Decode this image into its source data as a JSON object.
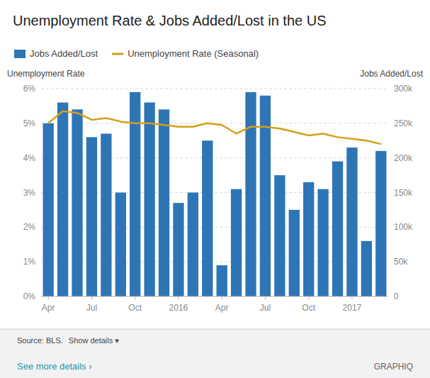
{
  "chart_data": {
    "type": "bar",
    "title": "Unemployment Rate & Jobs Added/Lost in the US",
    "y_label": "Unemployment Rate",
    "y2_label": "Jobs Added/Lost",
    "categories": [
      "Apr",
      null,
      null,
      "Jul",
      null,
      null,
      "Oct",
      null,
      null,
      "2016",
      null,
      null,
      "Apr",
      null,
      null,
      "Jul",
      null,
      null,
      "Oct",
      null,
      null,
      "2017",
      null,
      null
    ],
    "series": [
      {
        "name": "Jobs Added/Lost",
        "type": "bar",
        "axis": "y2",
        "color": "#2e75b6",
        "values": [
          250000,
          280000,
          270000,
          230000,
          235000,
          150000,
          295000,
          280000,
          270000,
          135000,
          150000,
          225000,
          45000,
          155000,
          295000,
          290000,
          175000,
          125000,
          165000,
          155000,
          195000,
          215000,
          80000,
          210000
        ]
      },
      {
        "name": "Unemployment Rate (Seasonal)",
        "type": "line",
        "color": "#d4a017",
        "values": [
          5.0,
          5.35,
          5.3,
          5.1,
          5.15,
          5.05,
          5.0,
          5.0,
          4.95,
          4.9,
          4.9,
          5.0,
          4.95,
          4.7,
          4.9,
          4.9,
          4.85,
          4.75,
          4.65,
          4.7,
          4.6,
          4.55,
          4.5,
          4.4
        ]
      }
    ],
    "ylim": [
      0,
      6
    ],
    "yticks": [
      {
        "value": 0,
        "label": "0%"
      },
      {
        "value": 1,
        "label": "1%"
      },
      {
        "value": 2,
        "label": "2%"
      },
      {
        "value": 3,
        "label": "3%"
      },
      {
        "value": 4,
        "label": "4%"
      },
      {
        "value": 5,
        "label": "5%"
      },
      {
        "value": 6,
        "label": "6%"
      }
    ],
    "y2lim": [
      0,
      300000
    ],
    "y2ticks": [
      0,
      {
        "value": 50000,
        "label": "50k"
      },
      {
        "value": 100000,
        "label": "100k"
      },
      {
        "value": 150000,
        "label": "150k"
      },
      {
        "value": 200000,
        "label": "200k"
      },
      {
        "value": 250000,
        "label": "250k"
      },
      {
        "value": 300000,
        "label": "300k"
      }
    ],
    "grid": true,
    "legend": "top",
    "annotations": [
      "Source: BLS.",
      "Show details ▾",
      "See more details ›",
      "GRAPHIQ"
    ]
  }
}
